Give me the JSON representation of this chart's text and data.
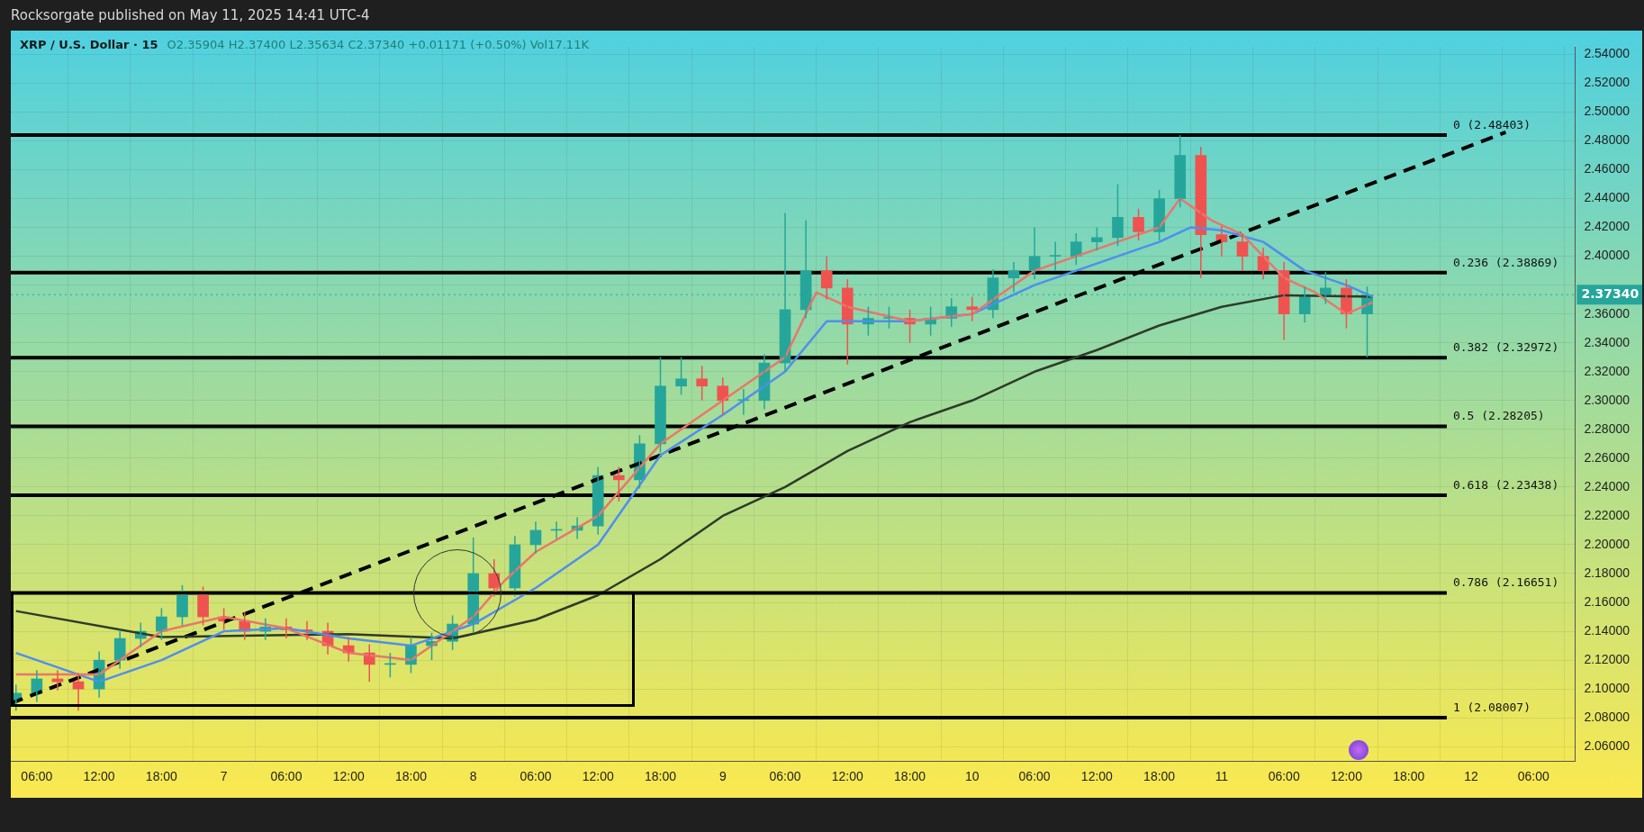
{
  "chart_data": {
    "type": "candlestick",
    "title": "XRP / U.S. Dollar · 15",
    "subtitle": "O2.35904 H2.37400 L2.35634 C2.37340 +0.01171 (+0.50%) Vol17.11K",
    "annotations": [
      "Rocksorgate published on May 11, 2025 14:41 UTC-4"
    ],
    "x": [
      "2025-05-06T04:00",
      "2025-05-06T06:00",
      "2025-05-06T08:00",
      "2025-05-06T10:00",
      "2025-05-06T12:00",
      "2025-05-06T14:00",
      "2025-05-06T16:00",
      "2025-05-06T18:00",
      "2025-05-06T20:00",
      "2025-05-06T22:00",
      "2025-05-07T00:00",
      "2025-05-07T02:00",
      "2025-05-07T04:00",
      "2025-05-07T06:00",
      "2025-05-07T08:00",
      "2025-05-07T10:00",
      "2025-05-07T12:00",
      "2025-05-07T14:00",
      "2025-05-07T16:00",
      "2025-05-07T18:00",
      "2025-05-07T20:00",
      "2025-05-07T22:00",
      "2025-05-08T00:00",
      "2025-05-08T02:00",
      "2025-05-08T04:00",
      "2025-05-08T06:00",
      "2025-05-08T08:00",
      "2025-05-08T10:00",
      "2025-05-08T12:00",
      "2025-05-08T14:00",
      "2025-05-08T16:00",
      "2025-05-08T18:00",
      "2025-05-08T20:00",
      "2025-05-08T22:00",
      "2025-05-09T00:00",
      "2025-05-09T02:00",
      "2025-05-09T04:00",
      "2025-05-09T06:00",
      "2025-05-09T08:00",
      "2025-05-09T10:00",
      "2025-05-09T12:00",
      "2025-05-09T14:00",
      "2025-05-09T16:00",
      "2025-05-09T18:00",
      "2025-05-09T20:00",
      "2025-05-09T22:00",
      "2025-05-10T00:00",
      "2025-05-10T02:00",
      "2025-05-10T04:00",
      "2025-05-10T06:00",
      "2025-05-10T08:00",
      "2025-05-10T10:00",
      "2025-05-10T12:00",
      "2025-05-10T14:00",
      "2025-05-10T16:00",
      "2025-05-10T18:00",
      "2025-05-10T20:00",
      "2025-05-10T22:00",
      "2025-05-11T00:00",
      "2025-05-11T02:00",
      "2025-05-11T04:00",
      "2025-05-11T06:00",
      "2025-05-11T08:00",
      "2025-05-11T10:00",
      "2025-05-11T12:00",
      "2025-05-11T14:00"
    ],
    "ohlc": [
      [
        2.092,
        2.103,
        2.085,
        2.097
      ],
      [
        2.097,
        2.113,
        2.091,
        2.107
      ],
      [
        2.107,
        2.113,
        2.099,
        2.105
      ],
      [
        2.105,
        2.111,
        2.085,
        2.1
      ],
      [
        2.1,
        2.126,
        2.094,
        2.12
      ],
      [
        2.12,
        2.141,
        2.114,
        2.135
      ],
      [
        2.135,
        2.146,
        2.129,
        2.14
      ],
      [
        2.14,
        2.156,
        2.134,
        2.15
      ],
      [
        2.15,
        2.172,
        2.144,
        2.165
      ],
      [
        2.165,
        2.171,
        2.144,
        2.15
      ],
      [
        2.15,
        2.156,
        2.141,
        2.147
      ],
      [
        2.147,
        2.153,
        2.134,
        2.14
      ],
      [
        2.14,
        2.149,
        2.134,
        2.143
      ],
      [
        2.143,
        2.149,
        2.135,
        2.141
      ],
      [
        2.141,
        2.147,
        2.134,
        2.14
      ],
      [
        2.14,
        2.146,
        2.124,
        2.13
      ],
      [
        2.13,
        2.136,
        2.119,
        2.125
      ],
      [
        2.125,
        2.131,
        2.105,
        2.117
      ],
      [
        2.117,
        2.125,
        2.108,
        2.117
      ],
      [
        2.117,
        2.136,
        2.111,
        2.13
      ],
      [
        2.13,
        2.139,
        2.12,
        2.133
      ],
      [
        2.133,
        2.151,
        2.127,
        2.145
      ],
      [
        2.145,
        2.205,
        2.139,
        2.18
      ],
      [
        2.18,
        2.19,
        2.164,
        2.17
      ],
      [
        2.17,
        2.206,
        2.164,
        2.2
      ],
      [
        2.2,
        2.216,
        2.194,
        2.21
      ],
      [
        2.21,
        2.216,
        2.204,
        2.21
      ],
      [
        2.21,
        2.219,
        2.204,
        2.213
      ],
      [
        2.213,
        2.254,
        2.207,
        2.248
      ],
      [
        2.248,
        2.254,
        2.23,
        2.245
      ],
      [
        2.245,
        2.276,
        2.239,
        2.27
      ],
      [
        2.27,
        2.33,
        2.264,
        2.31
      ],
      [
        2.31,
        2.33,
        2.304,
        2.315
      ],
      [
        2.315,
        2.324,
        2.3,
        2.31
      ],
      [
        2.31,
        2.316,
        2.29,
        2.3
      ],
      [
        2.3,
        2.308,
        2.29,
        2.3
      ],
      [
        2.3,
        2.332,
        2.294,
        2.326
      ],
      [
        2.326,
        2.43,
        2.32,
        2.363
      ],
      [
        2.363,
        2.425,
        2.357,
        2.39
      ],
      [
        2.39,
        2.4,
        2.37,
        2.378
      ],
      [
        2.378,
        2.384,
        2.325,
        2.353
      ],
      [
        2.353,
        2.365,
        2.345,
        2.357
      ],
      [
        2.357,
        2.365,
        2.35,
        2.357
      ],
      [
        2.357,
        2.363,
        2.34,
        2.353
      ],
      [
        2.353,
        2.365,
        2.345,
        2.357
      ],
      [
        2.357,
        2.371,
        2.351,
        2.365
      ],
      [
        2.365,
        2.372,
        2.355,
        2.363
      ],
      [
        2.363,
        2.391,
        2.357,
        2.385
      ],
      [
        2.385,
        2.396,
        2.375,
        2.39
      ],
      [
        2.39,
        2.42,
        2.384,
        2.4
      ],
      [
        2.4,
        2.41,
        2.39,
        2.4
      ],
      [
        2.4,
        2.416,
        2.394,
        2.41
      ],
      [
        2.41,
        2.42,
        2.404,
        2.413
      ],
      [
        2.413,
        2.45,
        2.407,
        2.427
      ],
      [
        2.427,
        2.433,
        2.411,
        2.417
      ],
      [
        2.417,
        2.446,
        2.411,
        2.44
      ],
      [
        2.44,
        2.484,
        2.434,
        2.47
      ],
      [
        2.47,
        2.476,
        2.385,
        2.415
      ],
      [
        2.415,
        2.421,
        2.4,
        2.41
      ],
      [
        2.41,
        2.416,
        2.39,
        2.4
      ],
      [
        2.4,
        2.406,
        2.384,
        2.39
      ],
      [
        2.39,
        2.396,
        2.342,
        2.36
      ],
      [
        2.36,
        2.379,
        2.354,
        2.373
      ],
      [
        2.373,
        2.389,
        2.367,
        2.378
      ],
      [
        2.378,
        2.384,
        2.35,
        2.36
      ],
      [
        2.36,
        2.379,
        2.33,
        2.373
      ]
    ],
    "colors": [
      "#26a69a",
      "#26a69a",
      "#ef5350",
      "#ef5350",
      "#26a69a",
      "#26a69a",
      "#26a69a",
      "#26a69a",
      "#26a69a",
      "#ef5350",
      "#ef5350",
      "#ef5350",
      "#26a69a",
      "#ef5350",
      "#ef5350",
      "#ef5350",
      "#ef5350",
      "#ef5350",
      "#26a69a",
      "#26a69a",
      "#26a69a",
      "#26a69a",
      "#26a69a",
      "#ef5350",
      "#26a69a",
      "#26a69a",
      "#26a69a",
      "#26a69a",
      "#26a69a",
      "#ef5350",
      "#26a69a",
      "#26a69a",
      "#26a69a",
      "#ef5350",
      "#ef5350",
      "#26a69a",
      "#26a69a",
      "#26a69a",
      "#26a69a",
      "#ef5350",
      "#ef5350",
      "#26a69a",
      "#26a69a",
      "#ef5350",
      "#26a69a",
      "#26a69a",
      "#ef5350",
      "#26a69a",
      "#26a69a",
      "#26a69a",
      "#26a69a",
      "#26a69a",
      "#26a69a",
      "#26a69a",
      "#ef5350",
      "#26a69a",
      "#26a69a",
      "#ef5350",
      "#ef5350",
      "#ef5350",
      "#ef5350",
      "#ef5350",
      "#26a69a",
      "#26a69a",
      "#ef5350",
      "#26a69a"
    ],
    "series": [
      {
        "type": "line",
        "color": "#e8776b",
        "x": [
          "2025-05-06T04:00",
          "2025-05-06T12:00",
          "2025-05-06T18:00",
          "2025-05-07T00:00",
          "2025-05-07T06:00",
          "2025-05-07T12:00",
          "2025-05-07T18:00",
          "2025-05-08T00:00",
          "2025-05-08T03:00",
          "2025-05-08T06:00",
          "2025-05-08T12:00",
          "2025-05-08T18:00",
          "2025-05-09T00:00",
          "2025-05-09T06:00",
          "2025-05-09T09:00",
          "2025-05-09T12:00",
          "2025-05-09T18:00",
          "2025-05-10T00:00",
          "2025-05-10T06:00",
          "2025-05-10T12:00",
          "2025-05-10T18:00",
          "2025-05-10T20:00",
          "2025-05-10T23:00",
          "2025-05-11T02:00",
          "2025-05-11T06:00",
          "2025-05-11T09:00",
          "2025-05-11T12:00",
          "2025-05-11T14:30"
        ],
        "values": [
          2.11,
          2.11,
          2.14,
          2.15,
          2.142,
          2.125,
          2.12,
          2.15,
          2.175,
          2.195,
          2.22,
          2.27,
          2.3,
          2.33,
          2.375,
          2.365,
          2.355,
          2.36,
          2.39,
          2.405,
          2.42,
          2.44,
          2.425,
          2.415,
          2.385,
          2.375,
          2.36,
          2.368
        ]
      },
      {
        "type": "line",
        "color": "#4f8ef0",
        "x": [
          "2025-05-06T04:00",
          "2025-05-06T12:00",
          "2025-05-06T18:00",
          "2025-05-07T00:00",
          "2025-05-07T06:00",
          "2025-05-07T12:00",
          "2025-05-07T18:00",
          "2025-05-08T00:00",
          "2025-05-08T06:00",
          "2025-05-08T12:00",
          "2025-05-08T18:00",
          "2025-05-09T00:00",
          "2025-05-09T06:00",
          "2025-05-09T10:00",
          "2025-05-09T18:00",
          "2025-05-10T00:00",
          "2025-05-10T06:00",
          "2025-05-10T12:00",
          "2025-05-10T18:00",
          "2025-05-10T21:00",
          "2025-05-11T00:00",
          "2025-05-11T04:00",
          "2025-05-11T08:00",
          "2025-05-11T12:00",
          "2025-05-11T14:30"
        ],
        "values": [
          2.125,
          2.105,
          2.12,
          2.14,
          2.142,
          2.135,
          2.13,
          2.145,
          2.17,
          2.2,
          2.262,
          2.29,
          2.32,
          2.355,
          2.355,
          2.36,
          2.38,
          2.395,
          2.41,
          2.42,
          2.418,
          2.41,
          2.39,
          2.38,
          2.372
        ]
      },
      {
        "type": "line",
        "color": "#2e3b2a",
        "x": [
          "2025-05-06T04:00",
          "2025-05-06T18:00",
          "2025-05-07T12:00",
          "2025-05-07T22:00",
          "2025-05-08T06:00",
          "2025-05-08T12:00",
          "2025-05-08T18:00",
          "2025-05-09T00:00",
          "2025-05-09T06:00",
          "2025-05-09T12:00",
          "2025-05-09T18:00",
          "2025-05-10T00:00",
          "2025-05-10T06:00",
          "2025-05-10T12:00",
          "2025-05-10T18:00",
          "2025-05-11T00:00",
          "2025-05-11T06:00",
          "2025-05-11T14:30"
        ],
        "values": [
          2.154,
          2.136,
          2.138,
          2.135,
          2.148,
          2.165,
          2.19,
          2.22,
          2.24,
          2.265,
          2.285,
          2.3,
          2.32,
          2.335,
          2.352,
          2.365,
          2.373,
          2.372
        ]
      },
      {
        "type": "line",
        "color": "#000000",
        "line_style": "dashed",
        "x": [
          "2025-05-06T03:30",
          "2025-05-12T03:20"
        ],
        "values": [
          2.09,
          2.486
        ]
      }
    ],
    "xlim": [
      "2025-05-06T03:30",
      "2025-05-12T10:00"
    ],
    "xticks": [
      {
        "value": "2025-05-06T06:00",
        "label": "06:00"
      },
      {
        "value": "2025-05-06T12:00",
        "label": "12:00"
      },
      {
        "value": "2025-05-06T18:00",
        "label": "18:00"
      },
      {
        "value": "2025-05-07T00:00",
        "label": "7"
      },
      {
        "value": "2025-05-07T06:00",
        "label": "06:00"
      },
      {
        "value": "2025-05-07T12:00",
        "label": "12:00"
      },
      {
        "value": "2025-05-07T18:00",
        "label": "18:00"
      },
      {
        "value": "2025-05-08T00:00",
        "label": "8"
      },
      {
        "value": "2025-05-08T06:00",
        "label": "06:00"
      },
      {
        "value": "2025-05-08T12:00",
        "label": "12:00"
      },
      {
        "value": "2025-05-08T18:00",
        "label": "18:00"
      },
      {
        "value": "2025-05-09T00:00",
        "label": "9"
      },
      {
        "value": "2025-05-09T06:00",
        "label": "06:00"
      },
      {
        "value": "2025-05-09T12:00",
        "label": "12:00"
      },
      {
        "value": "2025-05-09T18:00",
        "label": "18:00"
      },
      {
        "value": "2025-05-10T00:00",
        "label": "10"
      },
      {
        "value": "2025-05-10T06:00",
        "label": "06:00"
      },
      {
        "value": "2025-05-10T12:00",
        "label": "12:00"
      },
      {
        "value": "2025-05-10T18:00",
        "label": "18:00"
      },
      {
        "value": "2025-05-11T00:00",
        "label": "11"
      },
      {
        "value": "2025-05-11T06:00",
        "label": "06:00"
      },
      {
        "value": "2025-05-11T12:00",
        "label": "12:00"
      },
      {
        "value": "2025-05-11T18:00",
        "label": "18:00"
      },
      {
        "value": "2025-05-12T00:00",
        "label": "12"
      },
      {
        "value": "2025-05-12T06:00",
        "label": "06:00"
      }
    ],
    "ylim": [
      2.05,
      2.545
    ],
    "yticks": [
      {
        "value": 2.06,
        "label": "2.06000"
      },
      {
        "value": 2.08,
        "label": "2.08000"
      },
      {
        "value": 2.1,
        "label": "2.10000"
      },
      {
        "value": 2.12,
        "label": "2.12000"
      },
      {
        "value": 2.14,
        "label": "2.14000"
      },
      {
        "value": 2.16,
        "label": "2.16000"
      },
      {
        "value": 2.18,
        "label": "2.18000"
      },
      {
        "value": 2.2,
        "label": "2.20000"
      },
      {
        "value": 2.22,
        "label": "2.22000"
      },
      {
        "value": 2.24,
        "label": "2.24000"
      },
      {
        "value": 2.26,
        "label": "2.26000"
      },
      {
        "value": 2.28,
        "label": "2.28000"
      },
      {
        "value": 2.3,
        "label": "2.30000"
      },
      {
        "value": 2.32,
        "label": "2.32000"
      },
      {
        "value": 2.34,
        "label": "2.34000"
      },
      {
        "value": 2.36,
        "label": "2.36000"
      },
      {
        "value": 2.38,
        "label": null
      },
      {
        "value": 2.4,
        "label": "2.40000"
      },
      {
        "value": 2.42,
        "label": "2.42000"
      },
      {
        "value": 2.44,
        "label": "2.44000"
      },
      {
        "value": 2.46,
        "label": "2.46000"
      },
      {
        "value": 2.48,
        "label": "2.48000"
      },
      {
        "value": 2.5,
        "label": "2.50000"
      },
      {
        "value": 2.52,
        "label": "2.52000"
      },
      {
        "value": 2.54,
        "label": "2.54000"
      }
    ],
    "ref_lines": [
      {
        "axis": "y",
        "value": 2.48403,
        "label": "0 (2.48403)",
        "color": "#000000"
      },
      {
        "axis": "y",
        "value": 2.38869,
        "label": "0.236 (2.38869)",
        "color": "#000000"
      },
      {
        "axis": "y",
        "value": 2.32972,
        "label": "0.382 (2.32972)",
        "color": "#000000"
      },
      {
        "axis": "y",
        "value": 2.28205,
        "label": "0.5 (2.28205)",
        "color": "#000000"
      },
      {
        "axis": "y",
        "value": 2.23438,
        "label": "0.618 (2.23438)",
        "color": "#000000"
      },
      {
        "axis": "y",
        "value": 2.16651,
        "label": "0.786 (2.16651)",
        "color": "#000000"
      },
      {
        "axis": "y",
        "value": 2.08007,
        "label": "1 (2.08007)",
        "color": "#000000"
      },
      {
        "axis": "y",
        "value": 2.3734,
        "label": "2.37340",
        "color": "#26a69a",
        "line_style": "dotted"
      }
    ],
    "grid": true
  }
}
